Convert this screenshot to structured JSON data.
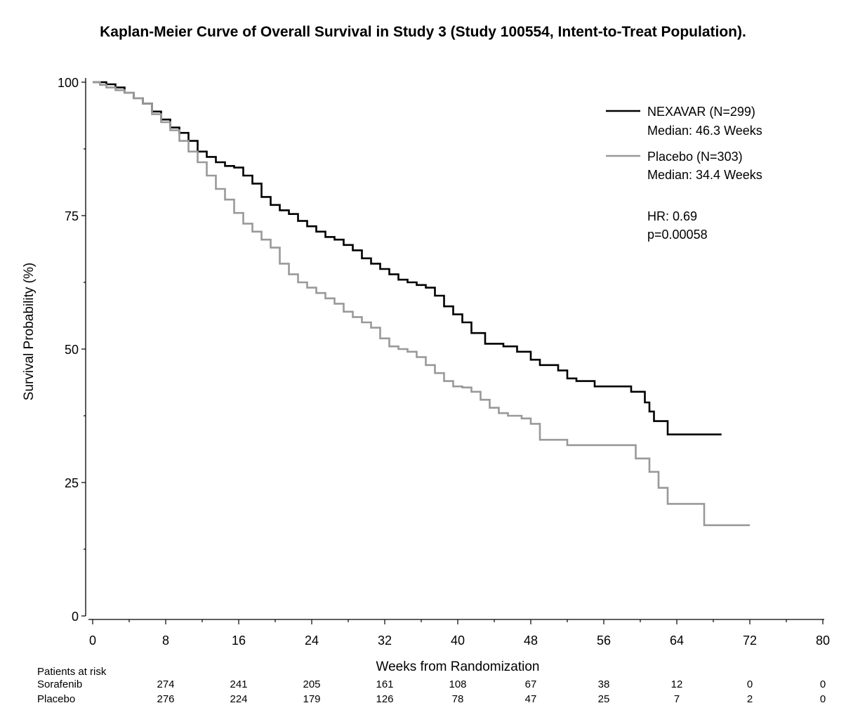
{
  "chart_data": {
    "type": "line",
    "title": "Kaplan-Meier Curve of Overall Survival in Study 3 (Study 100554, Intent-to-Treat Population).",
    "xlabel": "Weeks from Randomization",
    "ylabel": "Survival Probability (%)",
    "xlim": [
      0,
      80
    ],
    "ylim": [
      0,
      100
    ],
    "xticks": [
      0,
      8,
      16,
      24,
      32,
      40,
      48,
      56,
      64,
      72,
      80
    ],
    "yticks": [
      0,
      25,
      50,
      75,
      100
    ],
    "grid": false,
    "legend_position": "top-right",
    "series": [
      {
        "name": "NEXAVAR (N=299)",
        "median": "Median: 46.3 Weeks",
        "color": "#000000",
        "points": [
          [
            0,
            100
          ],
          [
            1.5,
            99.6
          ],
          [
            2.5,
            99
          ],
          [
            3.5,
            98
          ],
          [
            4.5,
            97
          ],
          [
            5.5,
            96
          ],
          [
            6.5,
            94.5
          ],
          [
            7.5,
            93
          ],
          [
            8.5,
            91.5
          ],
          [
            9.5,
            90.5
          ],
          [
            10.5,
            89
          ],
          [
            11.5,
            87
          ],
          [
            12.5,
            86
          ],
          [
            13.5,
            85
          ],
          [
            14.5,
            84.3
          ],
          [
            15.5,
            84
          ],
          [
            16.5,
            82.5
          ],
          [
            17.5,
            81
          ],
          [
            18.5,
            78.5
          ],
          [
            19.5,
            77
          ],
          [
            20.5,
            76
          ],
          [
            21.5,
            75.3
          ],
          [
            22.5,
            74
          ],
          [
            23.5,
            73
          ],
          [
            24.5,
            72
          ],
          [
            25.5,
            71
          ],
          [
            26.5,
            70.5
          ],
          [
            27.5,
            69.5
          ],
          [
            28.5,
            68.5
          ],
          [
            29.5,
            67
          ],
          [
            30.5,
            66
          ],
          [
            31.5,
            65
          ],
          [
            32.5,
            64
          ],
          [
            33.5,
            63
          ],
          [
            34.5,
            62.5
          ],
          [
            35.5,
            62
          ],
          [
            36.5,
            61.5
          ],
          [
            37.5,
            60
          ],
          [
            38.5,
            58
          ],
          [
            39.5,
            56.5
          ],
          [
            40.5,
            55
          ],
          [
            41.5,
            53
          ],
          [
            43,
            51
          ],
          [
            45,
            50.5
          ],
          [
            46.5,
            49.5
          ],
          [
            48,
            48
          ],
          [
            49,
            47
          ],
          [
            51,
            46
          ],
          [
            52,
            44.5
          ],
          [
            53,
            44
          ],
          [
            55,
            43
          ],
          [
            59,
            42
          ],
          [
            60.5,
            40
          ],
          [
            61,
            38.3
          ],
          [
            61.5,
            36.5
          ],
          [
            63,
            34
          ],
          [
            68.9,
            34
          ]
        ]
      },
      {
        "name": "Placebo (N=303)",
        "median": "Median: 34.4 Weeks",
        "color": "#999999",
        "points": [
          [
            0,
            100
          ],
          [
            0.8,
            99.5
          ],
          [
            1.5,
            99
          ],
          [
            2.5,
            98.5
          ],
          [
            3.5,
            98
          ],
          [
            4.5,
            97
          ],
          [
            5.5,
            96
          ],
          [
            6.5,
            94
          ],
          [
            7.5,
            92.5
          ],
          [
            8.5,
            91
          ],
          [
            9.5,
            89
          ],
          [
            10.5,
            87
          ],
          [
            11.5,
            85
          ],
          [
            12.5,
            82.5
          ],
          [
            13.5,
            80
          ],
          [
            14.5,
            78
          ],
          [
            15.5,
            75.5
          ],
          [
            16.5,
            73.5
          ],
          [
            17.5,
            72
          ],
          [
            18.5,
            70.5
          ],
          [
            19.5,
            69
          ],
          [
            20.5,
            66
          ],
          [
            21.5,
            64
          ],
          [
            22.5,
            62.5
          ],
          [
            23.5,
            61.5
          ],
          [
            24.5,
            60.5
          ],
          [
            25.5,
            59.5
          ],
          [
            26.5,
            58.5
          ],
          [
            27.5,
            57
          ],
          [
            28.5,
            56
          ],
          [
            29.5,
            55
          ],
          [
            30.5,
            54
          ],
          [
            31.5,
            52
          ],
          [
            32.5,
            50.5
          ],
          [
            33.5,
            50
          ],
          [
            34.5,
            49.5
          ],
          [
            35.5,
            48.5
          ],
          [
            36.5,
            47
          ],
          [
            37.5,
            45.5
          ],
          [
            38.5,
            44
          ],
          [
            39.5,
            43
          ],
          [
            40.5,
            42.8
          ],
          [
            41.5,
            42
          ],
          [
            42.5,
            40.5
          ],
          [
            43.5,
            39
          ],
          [
            44.5,
            38
          ],
          [
            45.5,
            37.5
          ],
          [
            47,
            37
          ],
          [
            48,
            36
          ],
          [
            49,
            33
          ],
          [
            52,
            32
          ],
          [
            59.5,
            29.5
          ],
          [
            61,
            27
          ],
          [
            62,
            24
          ],
          [
            63,
            21
          ],
          [
            67,
            17
          ],
          [
            72,
            17
          ]
        ]
      }
    ],
    "annotations": [
      "HR: 0.69",
      "p=0.00058"
    ],
    "risk_table": {
      "header": "Patients at risk",
      "weeks": [
        8,
        16,
        24,
        32,
        40,
        48,
        56,
        64,
        72,
        80
      ],
      "rows": [
        {
          "label": "Sorafenib",
          "values": [
            "274",
            "241",
            "205",
            "161",
            "108",
            "67",
            "38",
            "12",
            "0",
            "0"
          ]
        },
        {
          "label": "Placebo",
          "values": [
            "276",
            "224",
            "179",
            "126",
            "78",
            "47",
            "25",
            "7",
            "2",
            "0"
          ]
        }
      ]
    }
  }
}
